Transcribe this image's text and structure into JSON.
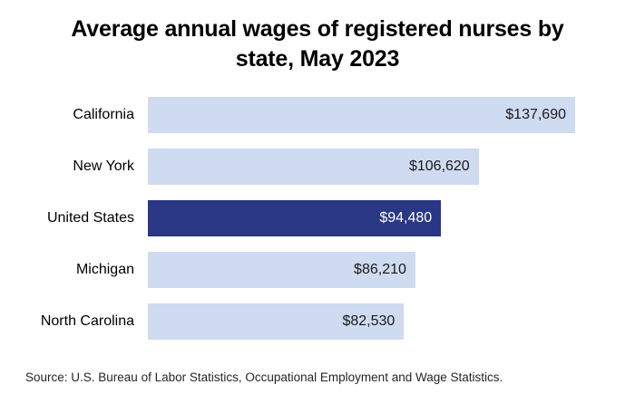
{
  "chart_data": {
    "type": "bar",
    "orientation": "horizontal",
    "title": "Average annual wages of registered nurses by state, May 2023",
    "title_lines": [
      "Average annual wages of registered nurses by",
      "state, May 2023"
    ],
    "categories": [
      "California",
      "New York",
      "United States",
      "Michigan",
      "North Carolina"
    ],
    "values": [
      137690,
      106620,
      94480,
      86210,
      82530
    ],
    "value_labels": [
      "$137,690",
      "$106,620",
      "$94,480",
      "$86,210",
      "$82,530"
    ],
    "highlighted_category": "United States",
    "xlim": [
      0,
      137690
    ],
    "grid": false,
    "legend": false,
    "colors": {
      "bar": "#cfdbf1",
      "highlight_bar": "#2a3784",
      "value_text": "#1a1a1a",
      "highlight_value_text": "#ffffff",
      "title_text": "#000000",
      "source_text": "#262626"
    }
  },
  "source_note": "Source: U.S. Bureau of Labor Statistics, Occupational Employment and Wage Statistics."
}
